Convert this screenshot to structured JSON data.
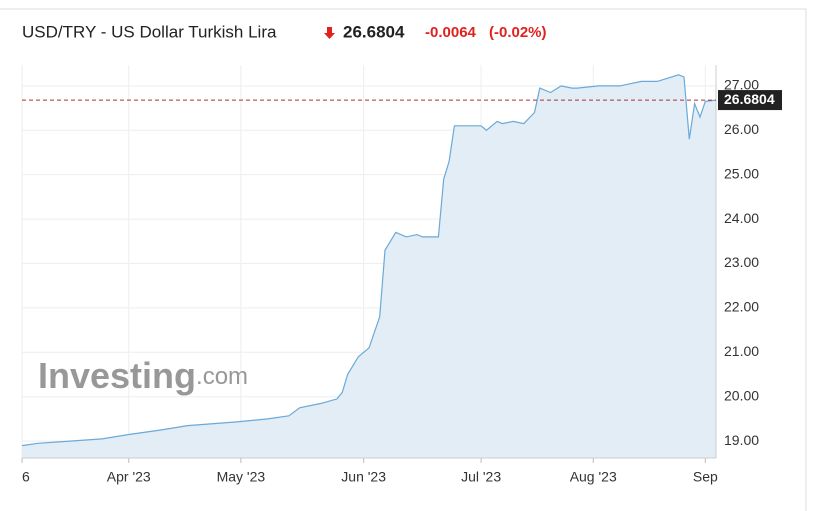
{
  "header": {
    "title": "USD/TRY - US Dollar Turkish Lira",
    "price": "26.6804",
    "change": "-0.0064",
    "change_pct": "(-0.02%)"
  },
  "watermark": {
    "brand": "Investing",
    "suffix": ".com"
  },
  "chart_data": {
    "type": "area",
    "color": "#6aa9d8",
    "fill": "#e2edf6",
    "grid": true,
    "x": [
      0,
      3,
      9,
      15,
      20,
      26,
      31,
      40,
      46,
      50,
      52,
      56,
      59,
      60,
      61,
      63,
      65,
      67,
      68,
      69,
      70,
      72,
      74,
      75,
      78,
      79,
      80,
      81,
      84,
      86,
      87,
      89,
      90,
      92,
      94,
      96,
      97,
      99,
      101,
      103,
      104,
      108,
      112,
      116,
      119,
      123,
      124,
      125,
      126,
      127,
      128,
      130
    ],
    "values": [
      18.9,
      18.95,
      19.0,
      19.05,
      19.15,
      19.25,
      19.35,
      19.43,
      19.5,
      19.57,
      19.75,
      19.85,
      19.95,
      20.1,
      20.5,
      20.9,
      21.1,
      21.8,
      23.3,
      23.5,
      23.7,
      23.6,
      23.65,
      23.6,
      23.6,
      24.9,
      25.3,
      26.1,
      26.1,
      26.1,
      26.0,
      26.2,
      26.15,
      26.2,
      26.15,
      26.4,
      26.95,
      26.85,
      27.0,
      26.95,
      26.95,
      27.0,
      27.0,
      27.1,
      27.1,
      27.25,
      27.2,
      25.8,
      26.6,
      26.3,
      26.65,
      26.68
    ],
    "xlim": [
      0,
      130
    ],
    "xticks": [
      {
        "value": 0,
        "label": "6"
      },
      {
        "value": 20,
        "label": "Apr '23"
      },
      {
        "value": 41,
        "label": "May '23"
      },
      {
        "value": 64,
        "label": "Jun '23"
      },
      {
        "value": 86,
        "label": "Jul '23"
      },
      {
        "value": 107,
        "label": "Aug '23"
      },
      {
        "value": 128,
        "label": "Sep"
      }
    ],
    "ylim": [
      18.62,
      27.47
    ],
    "yticks": [
      {
        "value": 19,
        "label": "19.00"
      },
      {
        "value": 20,
        "label": "20.00"
      },
      {
        "value": 21,
        "label": "21.00"
      },
      {
        "value": 22,
        "label": "22.00"
      },
      {
        "value": 23,
        "label": "23.00"
      },
      {
        "value": 24,
        "label": "24.00"
      },
      {
        "value": 25,
        "label": "25.00"
      },
      {
        "value": 26,
        "label": "26.00"
      },
      {
        "value": 27,
        "label": "27.00"
      }
    ],
    "last_price": {
      "value": 26.6804,
      "label": "26.6804"
    }
  }
}
